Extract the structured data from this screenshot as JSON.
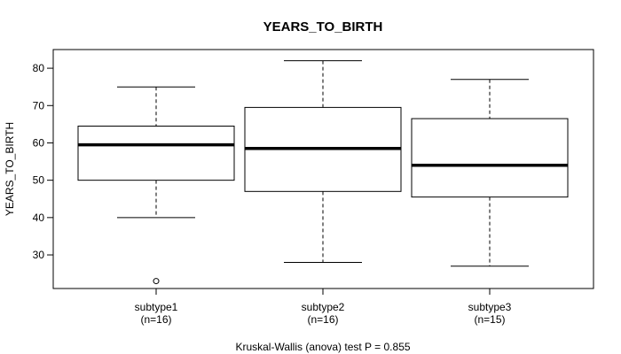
{
  "chart_data": {
    "type": "boxplot",
    "title": "YEARS_TO_BIRTH",
    "ylabel": "YEARS_TO_BIRTH",
    "xlabel": "",
    "ylim": [
      21,
      85
    ],
    "yticks": [
      30,
      40,
      50,
      60,
      70,
      80
    ],
    "footer": "Kruskal-Wallis (anova) test P = 0.855",
    "series": [
      {
        "name": "subtype1",
        "count_label": "(n=16)",
        "whisker_low": 40,
        "q1": 50,
        "median": 59.5,
        "q3": 64.5,
        "whisker_high": 75,
        "outliers": [
          23
        ]
      },
      {
        "name": "subtype2",
        "count_label": "(n=16)",
        "whisker_low": 28,
        "q1": 47,
        "median": 58.5,
        "q3": 69.5,
        "whisker_high": 82,
        "outliers": []
      },
      {
        "name": "subtype3",
        "count_label": "(n=15)",
        "whisker_low": 27,
        "q1": 45.5,
        "median": 54,
        "q3": 66.5,
        "whisker_high": 77,
        "outliers": []
      }
    ]
  }
}
